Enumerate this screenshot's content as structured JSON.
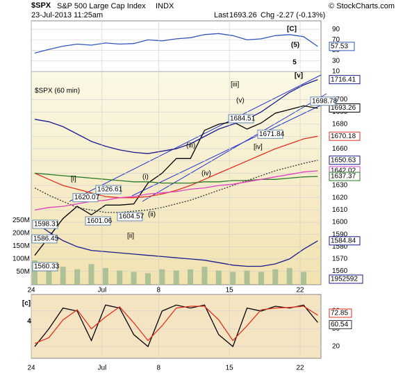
{
  "header": {
    "symbol": "$SPX",
    "name": "S&P 500 Large Cap Index",
    "exchange": "INDX",
    "credit": "© StockCharts.com",
    "date": "23-Jul-2013 11:25am",
    "last_label": "Last",
    "last": 1693.26,
    "chg_label": "Chg",
    "chg": "-2.27 (-0.13%)"
  },
  "chart_data": [
    {
      "type": "line",
      "ylim": [
        10,
        106
      ],
      "yticks": [
        90,
        70,
        50,
        30,
        10
      ],
      "color": "#3355bb",
      "values": [
        45,
        52,
        58,
        62,
        60,
        64,
        62,
        63,
        70,
        68,
        72,
        74,
        80,
        82,
        78,
        70,
        72,
        78,
        80,
        76,
        57.53
      ],
      "last_label": {
        "value": 57.53,
        "color": "#3355bb"
      },
      "wave_labels": [
        {
          "text": "[C]",
          "color": "#1a2fc0"
        },
        {
          "text": "(5)",
          "color": "#000000"
        },
        {
          "text": "5",
          "color": "#8a2be2"
        },
        {
          "text": "[v]",
          "color": "#e02020"
        }
      ]
    },
    {
      "type": "line",
      "subtitle": "$SPX (60 min)",
      "categories": [
        "24",
        null,
        null,
        null,
        null,
        "Jul",
        null,
        null,
        null,
        "8",
        null,
        null,
        null,
        null,
        "15",
        null,
        null,
        null,
        null,
        "22",
        null
      ],
      "ylim": [
        1549,
        1723
      ],
      "yticks": [
        1560,
        1570,
        1580,
        1590,
        1600,
        1610,
        1620,
        1630,
        1640,
        1650,
        1660,
        1670,
        1680,
        1690,
        1700
      ],
      "y2lim": [
        0,
        830000000
      ],
      "y2ticks": [
        {
          "value": 50000000,
          "label": "50M"
        },
        {
          "value": 100000000,
          "label": "100M"
        },
        {
          "value": 150000000,
          "label": "150M"
        },
        {
          "value": 200000000,
          "label": "200M"
        },
        {
          "value": 250000000,
          "label": "250M"
        }
      ],
      "series": [
        {
          "color": "#000000",
          "values": [
            1573,
            1588,
            1603,
            1613,
            1606,
            1614,
            1614,
            1615,
            1632,
            1640,
            1652,
            1652,
            1675,
            1680,
            1682,
            1676,
            1681,
            1689,
            1692,
            1695,
            1693
          ]
        },
        {
          "color": "#1a1a8c",
          "values": [
            1684,
            1682,
            1678,
            1672,
            1666,
            1662,
            1659,
            1657,
            1656,
            1658,
            1660,
            1664,
            1670,
            1676,
            1680,
            1684,
            1690,
            1698,
            1706,
            1712,
            1716.41
          ]
        },
        {
          "color": "#1a1a8c",
          "values": [
            1600,
            1592,
            1585,
            1580,
            1577,
            1576,
            1575,
            1574,
            1573,
            1572,
            1571,
            1570,
            1569,
            1567,
            1565,
            1564,
            1564,
            1566,
            1570,
            1578,
            1584.84
          ]
        },
        {
          "color": "#e03020",
          "values": [
            1640,
            1635,
            1630,
            1627,
            1624,
            1621,
            1620,
            1620,
            1621,
            1623,
            1626,
            1630,
            1635,
            1640,
            1645,
            1650,
            1655,
            1660,
            1664,
            1668,
            1670.18
          ]
        },
        {
          "color": "#2a7a2a",
          "values": [
            1640,
            1639,
            1638,
            1637,
            1636,
            1635,
            1634,
            1633,
            1633,
            1632,
            1632,
            1632,
            1633,
            1633,
            1634,
            1634,
            1635,
            1635,
            1636,
            1637,
            1637.37
          ]
        },
        {
          "color": "#333333",
          "dashed": true,
          "values": [
            1628,
            1622,
            1617,
            1612,
            1610,
            1608,
            1608,
            1609,
            1610,
            1612,
            1615,
            1618,
            1622,
            1626,
            1630,
            1634,
            1638,
            1642,
            1645,
            1648,
            1650.63
          ]
        },
        {
          "color": "#e040c0",
          "values": [
            1610,
            1612,
            1613,
            1615,
            1617,
            1618,
            1620,
            1621,
            1623,
            1624,
            1625,
            1627,
            1628,
            1630,
            1631,
            1633,
            1635,
            1637,
            1639,
            1641,
            1642.02
          ]
        },
        {
          "type": "bar",
          "axis": "y2",
          "color": "#9cb890",
          "values": [
            95000000,
            85000000,
            70000000,
            60000000,
            80000000,
            65000000,
            55000000,
            50000000,
            45000000,
            60000000,
            55000000,
            60000000,
            70000000,
            55000000,
            50000000,
            55000000,
            50000000,
            60000000,
            65000000,
            50000000,
            1952592
          ]
        }
      ],
      "right_labels": [
        {
          "value": 1716.41,
          "color": "#1a1a8c"
        },
        {
          "value": 1693.26,
          "color": "#000000"
        },
        {
          "value": 1670.18,
          "color": "#e03020"
        },
        {
          "value": 1650.63,
          "color": "#1a1a8c"
        },
        {
          "value": 1642.02,
          "color": "#e040c0"
        },
        {
          "value": 1637.37,
          "color": "#2a7a2a"
        },
        {
          "value": 1584.84,
          "color": "#1a1a8c"
        }
      ],
      "volume_label": {
        "value": 1952592,
        "color": "#1a1a8c"
      },
      "price_labels": [
        1598.31,
        1586.45,
        1560.33,
        1620.07,
        1626.61,
        1601.06,
        1604.57,
        1684.51,
        1671.84,
        1698.78
      ],
      "wave_labels": [
        {
          "text": "[i]",
          "color": "#e02020"
        },
        {
          "text": "[ii]",
          "color": "#e02020"
        },
        {
          "text": "[iii]",
          "color": "#e02020"
        },
        {
          "text": "[iv]",
          "color": "#e02020"
        },
        {
          "text": "(i)",
          "color": "#20a020"
        },
        {
          "text": "(ii)",
          "color": "#20a020"
        },
        {
          "text": "(iii)",
          "color": "#20a020"
        },
        {
          "text": "(iv)",
          "color": "#20a020"
        },
        {
          "text": "(v)",
          "color": "#20a020"
        }
      ]
    },
    {
      "type": "line",
      "ylim": [
        0,
        108
      ],
      "yticks": [
        80,
        50,
        20
      ],
      "series": [
        {
          "color": "#000000",
          "values": [
            20,
            50,
            85,
            80,
            30,
            90,
            85,
            40,
            20,
            80,
            90,
            85,
            90,
            40,
            20,
            85,
            80,
            88,
            85,
            90,
            60.54
          ]
        },
        {
          "color": "#e03020",
          "values": [
            25,
            35,
            65,
            82,
            50,
            70,
            87,
            60,
            30,
            55,
            85,
            88,
            88,
            65,
            30,
            55,
            82,
            85,
            86,
            88,
            72.85
          ]
        }
      ],
      "last_labels": [
        {
          "value": 72.85,
          "color": "#e03020"
        },
        {
          "value": 60.54,
          "color": "#333333"
        }
      ],
      "wave_labels": [
        {
          "text": "[c]",
          "color": "#e02020"
        },
        {
          "text": "4",
          "color": "#8a2be2"
        }
      ]
    }
  ]
}
